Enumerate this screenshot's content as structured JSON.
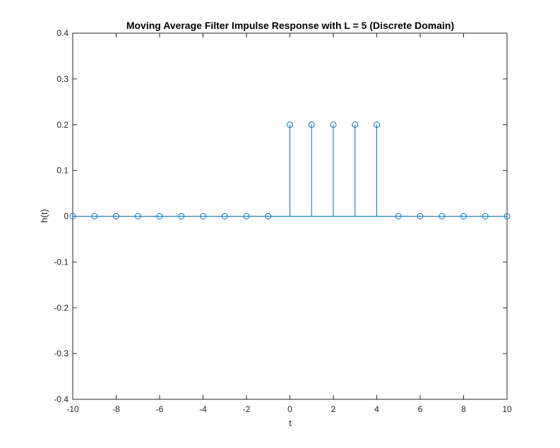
{
  "chart_data": {
    "type": "stem",
    "title": "Moving Average Filter Impulse Response with L = 5 (Discrete Domain)",
    "xlabel": "t",
    "ylabel": "h(t)",
    "xlim": [
      -10,
      10
    ],
    "ylim": [
      -0.4,
      0.4
    ],
    "x_ticks": [
      -10,
      -8,
      -6,
      -4,
      -2,
      0,
      2,
      4,
      6,
      8,
      10
    ],
    "x_tick_labels": [
      "-10",
      "-8",
      "-6",
      "-4",
      "-2",
      "0",
      "2",
      "4",
      "6",
      "8",
      "10"
    ],
    "y_ticks": [
      -0.4,
      -0.3,
      -0.2,
      -0.1,
      0,
      0.1,
      0.2,
      0.3,
      0.4
    ],
    "y_tick_labels": [
      "-0.4",
      "-0.3",
      "-0.2",
      "-0.1",
      "0",
      "0.1",
      "0.2",
      "0.3",
      "0.4"
    ],
    "x": [
      -10,
      -9,
      -8,
      -7,
      -6,
      -5,
      -4,
      -3,
      -2,
      -1,
      0,
      1,
      2,
      3,
      4,
      5,
      6,
      7,
      8,
      9,
      10
    ],
    "y": [
      0,
      0,
      0,
      0,
      0,
      0,
      0,
      0,
      0,
      0,
      0.2,
      0.2,
      0.2,
      0.2,
      0.2,
      0,
      0,
      0,
      0,
      0,
      0
    ],
    "baseline": 0,
    "marker": "open-circle",
    "color": "#0072BD",
    "grid": false
  }
}
